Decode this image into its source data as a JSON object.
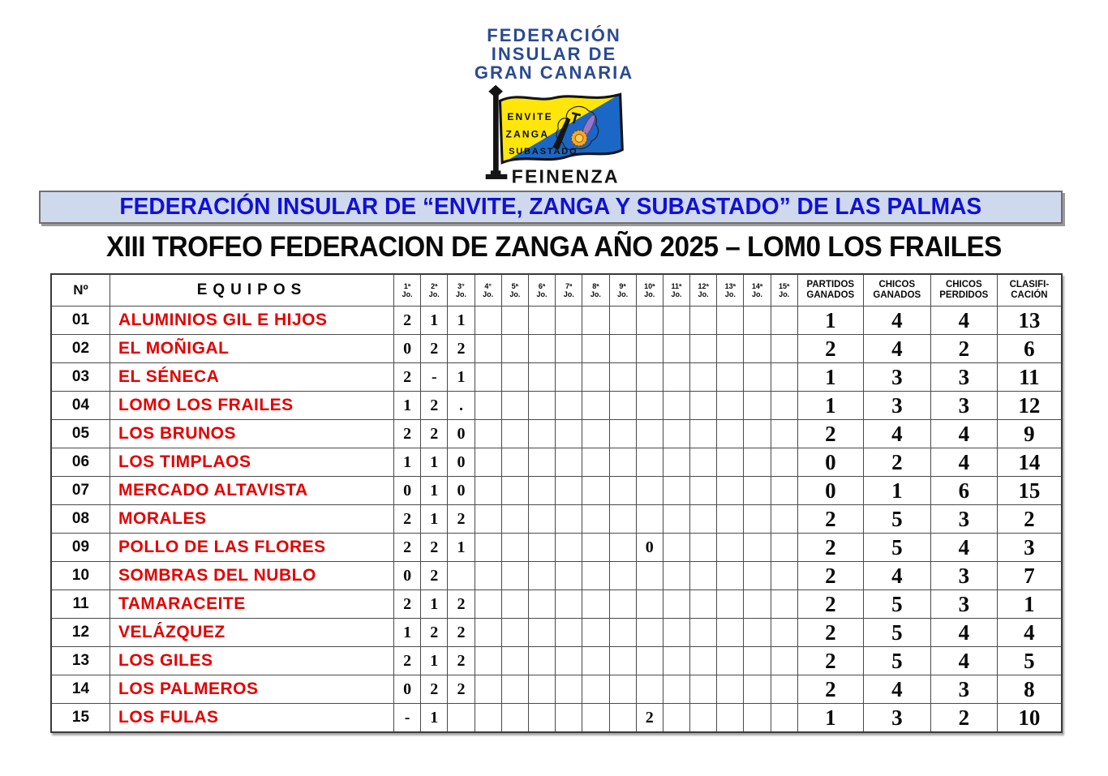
{
  "logo": {
    "org_lines": [
      "FEDERACIÓN",
      "INSULAR DE",
      "GRAN CANARIA"
    ],
    "flag_words": [
      "ENVITE",
      "ZANGA",
      "SUBASTADO"
    ],
    "flag_caption": "FEINENZA",
    "colors": {
      "org_text": "#2A4A94",
      "flag_yellow": "#FFE60A",
      "flag_blue": "#1A67C6",
      "rosette_orange": "#F4A733",
      "baton_purple": "#9678C8"
    }
  },
  "banner": {
    "text": "FEDERACIÓN INSULAR DE “ENVITE, ZANGA Y SUBASTADO” DE LAS PALMAS",
    "text_color": "#1010D6",
    "bg_color": "#CFD9EE"
  },
  "title": "XIII TROFEO FEDERACION DE ZANGA AÑO 2025 – LOM0 LOS FRAILES",
  "table": {
    "header_num": "Nº",
    "header_equipos": "EQUIPOS",
    "jornada_headers": [
      "1ª",
      "2ª",
      "3°",
      "4°",
      "5ª",
      "6ª",
      "7ª",
      "8ª",
      "9ª",
      "10ª",
      "11ª",
      "12ª",
      "13ª",
      "14ª",
      "15ª"
    ],
    "jornada_sub": "Jo.",
    "wide_headers": [
      [
        "PARTIDOS",
        "GANADOS"
      ],
      [
        "CHICOS",
        "GANADOS"
      ],
      [
        "CHICOS",
        "PERDIDOS"
      ],
      [
        "CLASIFI-",
        "CACIÓN"
      ]
    ],
    "team_color": "#E30000",
    "rows": [
      {
        "num": "01",
        "team": "ALUMINIOS GIL E HIJOS",
        "jornadas": [
          "2",
          "1",
          "1",
          "",
          "",
          "",
          "",
          "",
          "",
          "",
          "",
          "",
          "",
          "",
          ""
        ],
        "pg": "1",
        "cg": "4",
        "cp": "4",
        "clas": "13"
      },
      {
        "num": "02",
        "team": "EL MOÑIGAL",
        "jornadas": [
          "0",
          "2",
          "2",
          "",
          "",
          "",
          "",
          "",
          "",
          "",
          "",
          "",
          "",
          "",
          ""
        ],
        "pg": "2",
        "cg": "4",
        "cp": "2",
        "clas": "6"
      },
      {
        "num": "03",
        "team": "EL SÉNECA",
        "jornadas": [
          "2",
          "-",
          "1",
          "",
          "",
          "",
          "",
          "",
          "",
          "",
          "",
          "",
          "",
          "",
          ""
        ],
        "pg": "1",
        "cg": "3",
        "cp": "3",
        "clas": "11"
      },
      {
        "num": "04",
        "team": "LOMO LOS FRAILES",
        "jornadas": [
          "1",
          "2",
          ".",
          "",
          "",
          "",
          "",
          "",
          "",
          "",
          "",
          "",
          "",
          "",
          ""
        ],
        "pg": "1",
        "cg": "3",
        "cp": "3",
        "clas": "12"
      },
      {
        "num": "05",
        "team": "LOS BRUNOS",
        "jornadas": [
          "2",
          "2",
          "0",
          "",
          "",
          "",
          "",
          "",
          "",
          "",
          "",
          "",
          "",
          "",
          ""
        ],
        "pg": "2",
        "cg": "4",
        "cp": "4",
        "clas": "9"
      },
      {
        "num": "06",
        "team": "LOS TIMPLAOS",
        "jornadas": [
          "1",
          "1",
          "0",
          "",
          "",
          "",
          "",
          "",
          "",
          "",
          "",
          "",
          "",
          "",
          ""
        ],
        "pg": "0",
        "cg": "2",
        "cp": "4",
        "clas": "14"
      },
      {
        "num": "07",
        "team": "MERCADO ALTAVISTA",
        "jornadas": [
          "0",
          "1",
          "0",
          "",
          "",
          "",
          "",
          "",
          "",
          "",
          "",
          "",
          "",
          "",
          ""
        ],
        "pg": "0",
        "cg": "1",
        "cp": "6",
        "clas": "15"
      },
      {
        "num": "08",
        "team": "MORALES",
        "jornadas": [
          "2",
          "1",
          "2",
          "",
          "",
          "",
          "",
          "",
          "",
          "",
          "",
          "",
          "",
          "",
          ""
        ],
        "pg": "2",
        "cg": "5",
        "cp": "3",
        "clas": "2"
      },
      {
        "num": "09",
        "team": "POLLO DE LAS FLORES",
        "jornadas": [
          "2",
          "2",
          "1",
          "",
          "",
          "",
          "",
          "",
          "",
          "0",
          "",
          "",
          "",
          "",
          ""
        ],
        "pg": "2",
        "cg": "5",
        "cp": "4",
        "clas": "3"
      },
      {
        "num": "10",
        "team": "SOMBRAS DEL NUBLO",
        "jornadas": [
          "0",
          "2",
          "",
          "",
          "",
          "",
          "",
          "",
          "",
          "",
          "",
          "",
          "",
          "",
          ""
        ],
        "pg": "2",
        "cg": "4",
        "cp": "3",
        "clas": "7"
      },
      {
        "num": "11",
        "team": "TAMARACEITE",
        "jornadas": [
          "2",
          "1",
          "2",
          "",
          "",
          "",
          "",
          "",
          "",
          "",
          "",
          "",
          "",
          "",
          ""
        ],
        "pg": "2",
        "cg": "5",
        "cp": "3",
        "clas": "1"
      },
      {
        "num": "12",
        "team": "VELÁZQUEZ",
        "jornadas": [
          "1",
          "2",
          "2",
          "",
          "",
          "",
          "",
          "",
          "",
          "",
          "",
          "",
          "",
          "",
          ""
        ],
        "pg": "2",
        "cg": "5",
        "cp": "4",
        "clas": "4"
      },
      {
        "num": "13",
        "team": "LOS GILES",
        "jornadas": [
          "2",
          "1",
          "2",
          "",
          "",
          "",
          "",
          "",
          "",
          "",
          "",
          "",
          "",
          "",
          ""
        ],
        "pg": "2",
        "cg": "5",
        "cp": "4",
        "clas": "5"
      },
      {
        "num": "14",
        "team": "LOS PALMEROS",
        "jornadas": [
          "0",
          "2",
          "2",
          "",
          "",
          "",
          "",
          "",
          "",
          "",
          "",
          "",
          "",
          "",
          ""
        ],
        "pg": "2",
        "cg": "4",
        "cp": "3",
        "clas": "8"
      },
      {
        "num": "15",
        "team": "LOS FULAS",
        "jornadas": [
          "-",
          "1",
          "",
          "",
          "",
          "",
          "",
          "",
          "",
          "2",
          "",
          "",
          "",
          "",
          ""
        ],
        "pg": "1",
        "cg": "3",
        "cp": "2",
        "clas": "10"
      }
    ]
  }
}
